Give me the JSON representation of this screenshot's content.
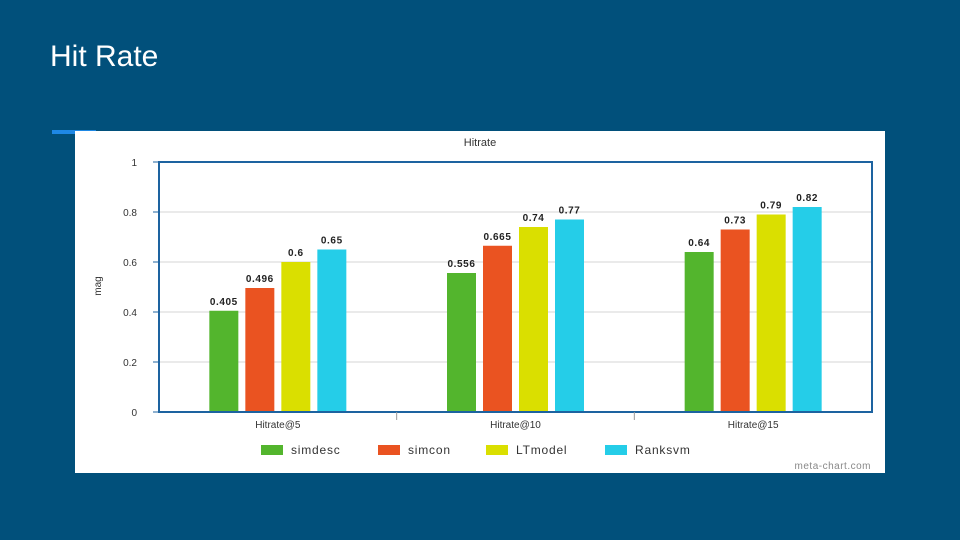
{
  "slide": {
    "title": "Hit Rate"
  },
  "chart_data": {
    "type": "bar",
    "title": "Hitrate",
    "xlabel": "",
    "ylabel": "mag",
    "ylim": [
      0,
      1
    ],
    "yticks": [
      "0",
      "0.2",
      "0.4",
      "0.6",
      "0.8",
      "1"
    ],
    "categories": [
      "Hitrate@5",
      "Hitrate@10",
      "Hitrate@15"
    ],
    "series": [
      {
        "name": "simdesc",
        "color": "#53b52d",
        "values": [
          0.405,
          0.556,
          0.64
        ],
        "labels": [
          "0.405",
          "0.556",
          "0.64"
        ]
      },
      {
        "name": "simcon",
        "color": "#ea5321",
        "values": [
          0.496,
          0.665,
          0.73
        ],
        "labels": [
          "0.496",
          "0.665",
          "0.73"
        ]
      },
      {
        "name": "LTmodel",
        "color": "#dadf00",
        "values": [
          0.6,
          0.74,
          0.79
        ],
        "labels": [
          "0.6",
          "0.74",
          "0.79"
        ]
      },
      {
        "name": "Ranksvm",
        "color": "#25cde8",
        "values": [
          0.65,
          0.77,
          0.82
        ],
        "labels": [
          "0.65",
          "0.77",
          "0.82"
        ]
      }
    ],
    "grid": true,
    "legend": "bottom",
    "watermark": "meta-chart.com"
  }
}
